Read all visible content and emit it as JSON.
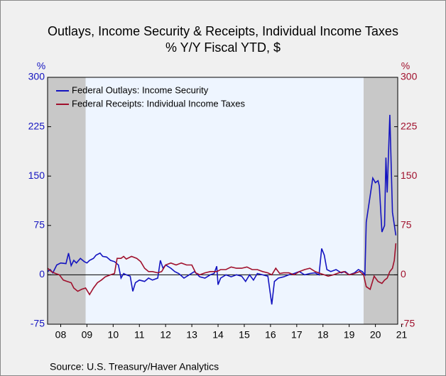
{
  "chart_data": {
    "type": "line",
    "title": "Outlays, Income Security & Receipts, Individual Income Taxes",
    "subtitle": "% Y/Y   Fiscal YTD, $",
    "ylabel": "%",
    "y2label": "%",
    "source": "Source:  U.S. Treasury/Haver Analytics",
    "xlim": [
      2008,
      2021.35
    ],
    "xticks": [
      {
        "value": 2008.5,
        "label": "08"
      },
      {
        "value": 2009.5,
        "label": "09"
      },
      {
        "value": 2010.5,
        "label": "10"
      },
      {
        "value": 2011.5,
        "label": "11"
      },
      {
        "value": 2012.5,
        "label": "12"
      },
      {
        "value": 2013.5,
        "label": "13"
      },
      {
        "value": 2014.5,
        "label": "14"
      },
      {
        "value": 2015.5,
        "label": "15"
      },
      {
        "value": 2016.5,
        "label": "16"
      },
      {
        "value": 2017.5,
        "label": "17"
      },
      {
        "value": 2018.5,
        "label": "18"
      },
      {
        "value": 2019.5,
        "label": "19"
      },
      {
        "value": 2020.5,
        "label": "20"
      },
      {
        "value": 2021.5,
        "label": "21"
      }
    ],
    "ylim": [
      -75,
      300
    ],
    "yticks": [
      -75,
      0,
      75,
      150,
      225,
      300
    ],
    "y2lim": [
      -75,
      300
    ],
    "y2ticks": [
      -75,
      0,
      75,
      150,
      225,
      300
    ],
    "recessions": [
      [
        2008,
        2009.45
      ],
      [
        2020.05,
        2021.35
      ]
    ],
    "legend": "upper left",
    "series": [
      {
        "name": "Federal Outlays: Income Security",
        "color": "#1414c0",
        "x": [
          2008.0,
          2008.1,
          2008.2,
          2008.35,
          2008.5,
          2008.7,
          2008.8,
          2008.9,
          2009.0,
          2009.1,
          2009.25,
          2009.4,
          2009.5,
          2009.6,
          2009.75,
          2009.85,
          2010.0,
          2010.1,
          2010.25,
          2010.4,
          2010.55,
          2010.7,
          2010.8,
          2010.9,
          2011.0,
          2011.15,
          2011.25,
          2011.35,
          2011.5,
          2011.7,
          2011.85,
          2012.0,
          2012.2,
          2012.3,
          2012.4,
          2012.5,
          2012.7,
          2012.85,
          2013.0,
          2013.2,
          2013.4,
          2013.6,
          2013.8,
          2014.0,
          2014.2,
          2014.35,
          2014.45,
          2014.5,
          2014.6,
          2014.8,
          2015.0,
          2015.2,
          2015.4,
          2015.55,
          2015.7,
          2015.85,
          2016.0,
          2016.2,
          2016.4,
          2016.55,
          2016.65,
          2016.8,
          2017.0,
          2017.2,
          2017.4,
          2017.6,
          2017.8,
          2018.0,
          2018.2,
          2018.35,
          2018.45,
          2018.55,
          2018.65,
          2018.8,
          2019.0,
          2019.2,
          2019.35,
          2019.5,
          2019.7,
          2019.85,
          2020.0,
          2020.1,
          2020.15,
          2020.3,
          2020.4,
          2020.5,
          2020.6,
          2020.65,
          2020.75,
          2020.85,
          2020.9,
          2020.95,
          2021.05,
          2021.15,
          2021.28
        ],
        "values": [
          5,
          8,
          3,
          15,
          18,
          17,
          33,
          14,
          22,
          18,
          25,
          20,
          18,
          22,
          25,
          30,
          33,
          28,
          27,
          22,
          20,
          15,
          -5,
          2,
          0,
          -2,
          -25,
          -12,
          -8,
          -10,
          -5,
          -8,
          -5,
          22,
          10,
          15,
          10,
          5,
          2,
          -5,
          0,
          5,
          -3,
          -5,
          0,
          2,
          13,
          -15,
          -5,
          0,
          -3,
          0,
          -2,
          -10,
          0,
          -8,
          2,
          0,
          -2,
          -45,
          -10,
          -5,
          -3,
          0,
          2,
          5,
          0,
          2,
          3,
          0,
          40,
          30,
          8,
          5,
          8,
          3,
          5,
          0,
          3,
          8,
          5,
          0,
          80,
          120,
          147,
          140,
          143,
          135,
          65,
          75,
          178,
          125,
          243,
          95,
          60
        ]
      },
      {
        "name": "Federal Receipts: Individual Income Taxes",
        "color": "#a0102c",
        "axis": "y2",
        "x": [
          2008.0,
          2008.15,
          2008.3,
          2008.45,
          2008.6,
          2008.75,
          2008.9,
          2009.0,
          2009.15,
          2009.3,
          2009.45,
          2009.6,
          2009.75,
          2009.9,
          2010.05,
          2010.2,
          2010.4,
          2010.55,
          2010.65,
          2010.8,
          2010.9,
          2011.0,
          2011.2,
          2011.4,
          2011.55,
          2011.7,
          2011.85,
          2012.0,
          2012.2,
          2012.35,
          2012.5,
          2012.7,
          2012.9,
          2013.1,
          2013.3,
          2013.5,
          2013.65,
          2013.8,
          2014.0,
          2014.2,
          2014.45,
          2014.6,
          2014.8,
          2015.0,
          2015.2,
          2015.4,
          2015.6,
          2015.8,
          2016.0,
          2016.2,
          2016.4,
          2016.55,
          2016.7,
          2016.85,
          2017.0,
          2017.2,
          2017.4,
          2017.6,
          2017.8,
          2018.0,
          2018.2,
          2018.4,
          2018.55,
          2018.7,
          2018.9,
          2019.1,
          2019.3,
          2019.5,
          2019.7,
          2019.9,
          2020.05,
          2020.15,
          2020.3,
          2020.45,
          2020.6,
          2020.75,
          2020.85,
          2020.95,
          2021.05,
          2021.15,
          2021.22,
          2021.28
        ],
        "values": [
          10,
          5,
          2,
          0,
          -8,
          -10,
          -12,
          -20,
          -25,
          -22,
          -20,
          -30,
          -20,
          -12,
          -8,
          -3,
          0,
          2,
          25,
          25,
          28,
          24,
          28,
          25,
          20,
          10,
          5,
          5,
          3,
          5,
          15,
          18,
          15,
          18,
          15,
          15,
          3,
          0,
          3,
          5,
          5,
          8,
          8,
          12,
          10,
          10,
          12,
          8,
          8,
          5,
          3,
          0,
          10,
          2,
          3,
          3,
          0,
          5,
          8,
          10,
          5,
          2,
          0,
          -2,
          0,
          3,
          5,
          0,
          2,
          5,
          0,
          -18,
          -22,
          -2,
          -10,
          -13,
          -8,
          -5,
          5,
          10,
          22,
          48
        ]
      }
    ]
  }
}
